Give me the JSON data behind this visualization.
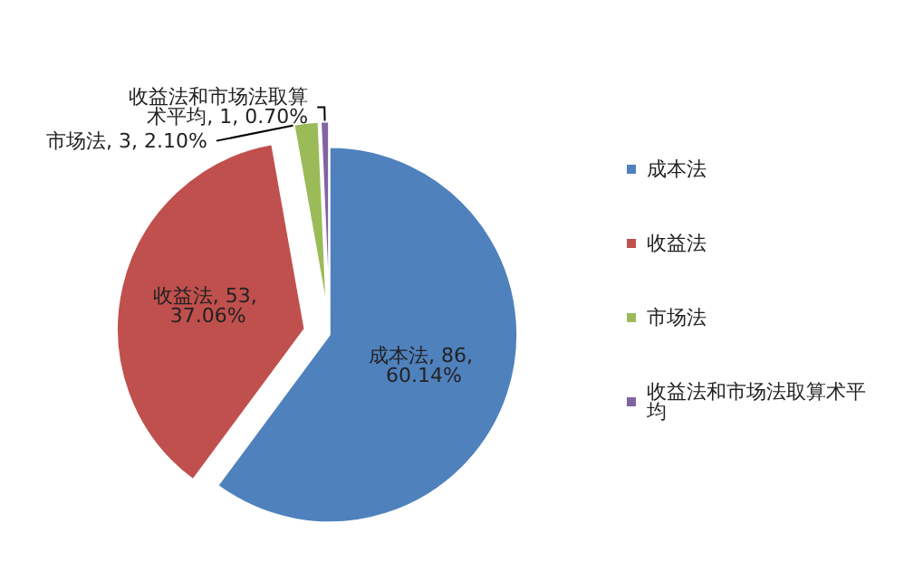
{
  "chart_data": {
    "type": "pie",
    "categories": [
      "成本法",
      "收益法",
      "市场法",
      "收益法和市场法取算术平均"
    ],
    "values": [
      86,
      53,
      3,
      1
    ],
    "colors": [
      "#4f81bd",
      "#c0504d",
      "#9bbb59",
      "#8064a2"
    ],
    "value_labels": [
      "成本法, 86, 60.14%",
      "收益法, 53, 37.06%",
      "市场法, 3, 2.10%",
      "收益法和市场法取算术平均, 1, 0.70%"
    ],
    "legend": "right"
  }
}
